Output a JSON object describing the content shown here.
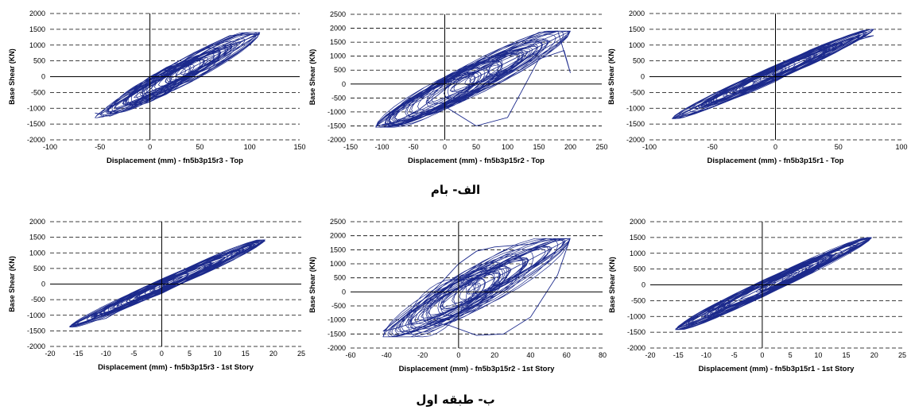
{
  "captions": {
    "top_row": "الف- بام",
    "bottom_row": "ب- طبقه اول"
  },
  "style": {
    "line_color": "#1c2a8c",
    "axis_color": "#000000",
    "grid_color": "#000000"
  },
  "chart_data": [
    {
      "type": "line",
      "xlabel": "Displacement (mm) - fn5b3p15r3 - Top",
      "ylabel": "Base Shear (KN)",
      "xlim": [
        -100,
        150
      ],
      "ylim": [
        -2000,
        2000
      ],
      "xticks": [
        -100,
        -50,
        0,
        50,
        100,
        150
      ],
      "yticks": [
        -2000,
        -1500,
        -1000,
        -500,
        0,
        500,
        1000,
        1500,
        2000
      ],
      "grid": "horizontal-dashed",
      "hysteresis": {
        "xmin": -55,
        "xmax": 110,
        "ymin": -1300,
        "ymax": 1400,
        "width": 900,
        "loops": 40,
        "seed": 11
      },
      "series": [
        {
          "x": [
            -55,
            -40,
            -20,
            0,
            20,
            40,
            60,
            80,
            110,
            90,
            60,
            30,
            0,
            -30,
            -50
          ],
          "y": [
            -1150,
            -1250,
            -1000,
            -400,
            200,
            600,
            1000,
            1300,
            1350,
            1100,
            700,
            300,
            -250,
            -800,
            -1200
          ]
        }
      ]
    },
    {
      "type": "line",
      "xlabel": "Displacement (mm) - fn5b3p15r2 - Top",
      "ylabel": "Base Shear (KN)",
      "xlim": [
        -150,
        250
      ],
      "ylim": [
        -2000,
        2500
      ],
      "xticks": [
        -150,
        -100,
        -50,
        0,
        50,
        100,
        150,
        200,
        250
      ],
      "yticks": [
        -2000,
        -1500,
        -1000,
        -500,
        0,
        500,
        1000,
        1500,
        2000,
        2500
      ],
      "grid": "horizontal-dashed",
      "hysteresis": {
        "xmin": -110,
        "xmax": 200,
        "ymin": -1550,
        "ymax": 1900,
        "width": 1300,
        "loops": 40,
        "seed": 23
      },
      "series": [
        {
          "x": [
            -110,
            -80,
            -40,
            0,
            40,
            80,
            120,
            150,
            180,
            200,
            190,
            150,
            100,
            50,
            0,
            -60,
            -100
          ],
          "y": [
            -1500,
            -1400,
            -900,
            -200,
            500,
            1000,
            1500,
            1850,
            1900,
            400,
            1200,
            900,
            -1200,
            -1500,
            -800,
            -1300,
            -1450
          ]
        }
      ]
    },
    {
      "type": "line",
      "xlabel": "Displacement (mm) - fn5b3p15r1 - Top",
      "ylabel": "Base Shear (KN)",
      "xlim": [
        -100,
        100
      ],
      "ylim": [
        -2000,
        2000
      ],
      "xticks": [
        -100,
        -50,
        0,
        50,
        100
      ],
      "yticks": [
        -2000,
        -1500,
        -1000,
        -500,
        0,
        500,
        1000,
        1500,
        2000
      ],
      "grid": "horizontal-dashed",
      "hysteresis": {
        "xmin": -82,
        "xmax": 78,
        "ymin": -1330,
        "ymax": 1500,
        "width": 500,
        "loops": 40,
        "seed": 37
      },
      "series": [
        {
          "x": [
            -82,
            -60,
            -40,
            -20,
            0,
            20,
            40,
            60,
            78,
            60,
            30,
            0,
            -30,
            -60,
            -80
          ],
          "y": [
            -1320,
            -1100,
            -800,
            -500,
            -150,
            300,
            700,
            1100,
            1300,
            1200,
            800,
            300,
            -300,
            -900,
            -1300
          ]
        }
      ]
    },
    {
      "type": "line",
      "xlabel": "Displacement (mm) - fn5b3p15r3 - 1st Story",
      "ylabel": "Base Shear (KN)",
      "xlim": [
        -20,
        25
      ],
      "ylim": [
        -2000,
        2000
      ],
      "xticks": [
        -20,
        -15,
        -10,
        -5,
        0,
        5,
        10,
        15,
        20,
        25
      ],
      "yticks": [
        -2000,
        -1500,
        -1000,
        -500,
        0,
        500,
        1000,
        1500,
        2000
      ],
      "grid": "horizontal-dashed",
      "hysteresis": {
        "xmin": -16.5,
        "xmax": 18.5,
        "ymin": -1380,
        "ymax": 1420,
        "width": 450,
        "loops": 40,
        "seed": 41
      },
      "series": [
        {
          "x": [
            -16.5,
            -10,
            -5,
            0,
            5,
            10,
            15,
            18.5,
            15,
            10,
            5,
            0,
            -5,
            -10,
            -16.5
          ],
          "y": [
            -1350,
            -1000,
            -650,
            -300,
            150,
            600,
            1100,
            1380,
            1250,
            700,
            250,
            -150,
            -600,
            -1100,
            -1350
          ]
        }
      ]
    },
    {
      "type": "line",
      "xlabel": "Displacement (mm) - fn5b3p15r2 - 1st Story",
      "ylabel": "Base Shear (KN)",
      "xlim": [
        -60,
        80
      ],
      "ylim": [
        -2000,
        2500
      ],
      "xticks": [
        -60,
        -40,
        -20,
        0,
        20,
        40,
        60,
        80
      ],
      "yticks": [
        -2000,
        -1500,
        -1000,
        -500,
        0,
        500,
        1000,
        1500,
        2000,
        2500
      ],
      "grid": "horizontal-dashed",
      "hysteresis": {
        "xmin": -42,
        "xmax": 62,
        "ymin": -1600,
        "ymax": 1900,
        "width": 1800,
        "loops": 40,
        "seed": 53
      },
      "series": [
        {
          "x": [
            -42,
            -30,
            -20,
            -10,
            0,
            10,
            20,
            30,
            40,
            50,
            62,
            55,
            40,
            25,
            10,
            -5,
            -20,
            -35,
            -42
          ],
          "y": [
            -1400,
            -800,
            -300,
            300,
            1000,
            1450,
            1600,
            1650,
            1700,
            1850,
            1900,
            600,
            -900,
            -1500,
            -1550,
            -1200,
            -1000,
            -1300,
            -1400
          ]
        }
      ]
    },
    {
      "type": "line",
      "xlabel": "Displacement (mm) - fn5b3p15r1 - 1st Story",
      "ylabel": "Base Shear (KN)",
      "xlim": [
        -20,
        25
      ],
      "ylim": [
        -2000,
        2000
      ],
      "xticks": [
        -20,
        -15,
        -10,
        -5,
        0,
        5,
        10,
        15,
        20,
        25
      ],
      "yticks": [
        -2000,
        -1500,
        -1000,
        -500,
        0,
        500,
        1000,
        1500,
        2000
      ],
      "grid": "horizontal-dashed",
      "hysteresis": {
        "xmin": -15.5,
        "xmax": 19.5,
        "ymin": -1420,
        "ymax": 1500,
        "width": 550,
        "loops": 40,
        "seed": 67
      },
      "series": [
        {
          "x": [
            -15.5,
            -10,
            -5,
            0,
            5,
            10,
            15,
            19.5,
            15,
            10,
            5,
            0,
            -5,
            -10,
            -15.5
          ],
          "y": [
            -1400,
            -1050,
            -700,
            -300,
            150,
            600,
            1100,
            1480,
            1300,
            800,
            350,
            -100,
            -550,
            -1000,
            -1400
          ]
        }
      ]
    }
  ]
}
